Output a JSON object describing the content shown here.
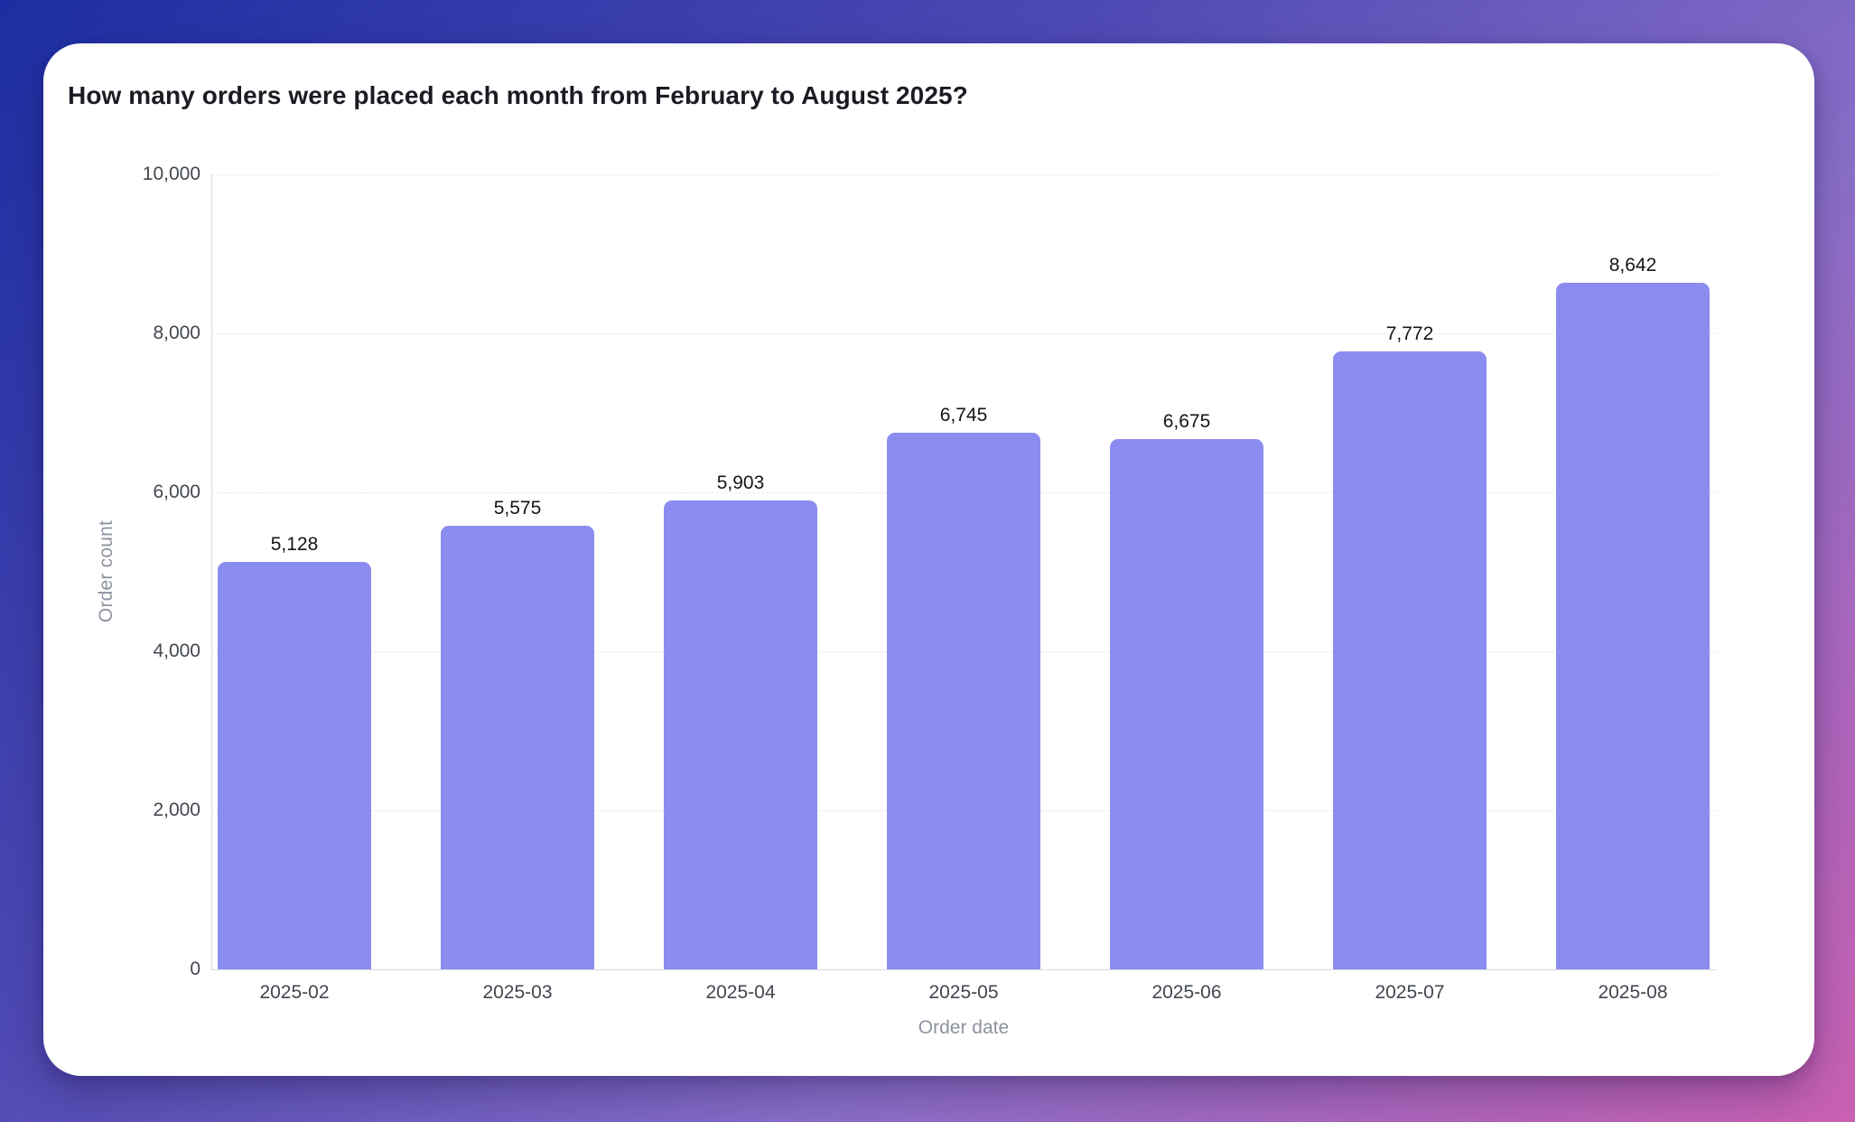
{
  "chart_data": {
    "type": "bar",
    "title": "How many orders were placed each month from February to August 2025?",
    "categories": [
      "2025-02",
      "2025-03",
      "2025-04",
      "2025-05",
      "2025-06",
      "2025-07",
      "2025-08"
    ],
    "values": [
      5128,
      5575,
      5903,
      6745,
      6675,
      7772,
      8642
    ],
    "value_labels": [
      "5,128",
      "5,575",
      "5,903",
      "6,745",
      "6,675",
      "7,772",
      "8,642"
    ],
    "xlabel": "Order date",
    "ylabel": "Order count",
    "ylim": [
      0,
      10000
    ],
    "yticks": [
      {
        "value": 0,
        "label": "0"
      },
      {
        "value": 2000,
        "label": "2,000"
      },
      {
        "value": 4000,
        "label": "4,000"
      },
      {
        "value": 6000,
        "label": "6,000"
      },
      {
        "value": 8000,
        "label": "8,000"
      },
      {
        "value": 10000,
        "label": "10,000"
      }
    ],
    "grid": "dashed-horizontal",
    "legend": "none",
    "colors": {
      "bar": "#8b8cef",
      "grid_line": "#e7e7ee",
      "axis_line": "#d9dae1",
      "tick_text": "#42474f",
      "value_text": "#14151a",
      "axis_title_text": "#8d93a0",
      "title_text": "#1b1c23",
      "card_bg": "#ffffff",
      "bg_start": "#1c2ea3",
      "bg_mid1": "#4d49b3",
      "bg_mid2": "#8a6fc9",
      "bg_end": "#ca60b2"
    }
  }
}
